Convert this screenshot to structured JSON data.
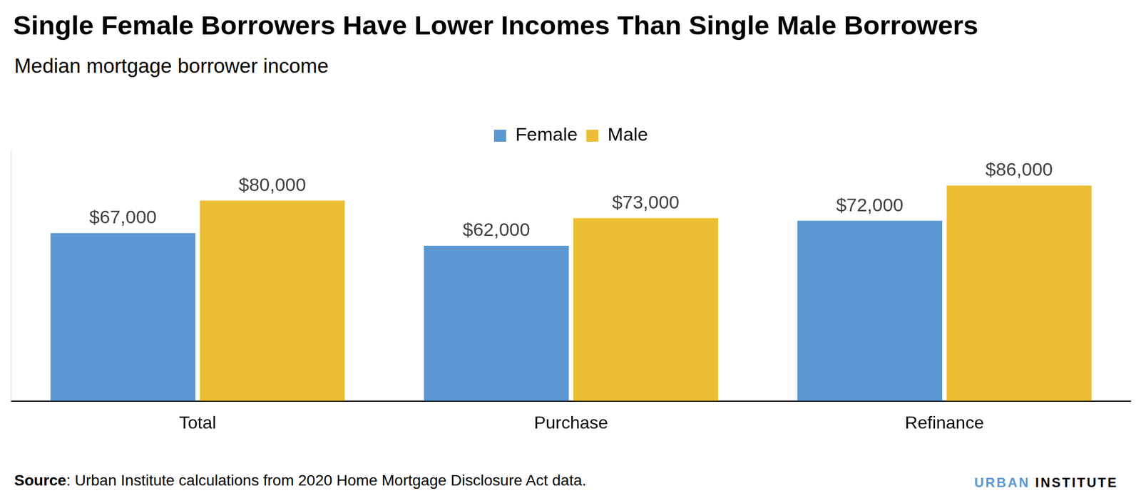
{
  "chart_data": {
    "type": "bar",
    "title": "Single Female Borrowers Have Lower Incomes Than Single Male Borrowers",
    "subtitle": "Median mortgage borrower income",
    "source": "Source: Urban Institute calculations from 2020 Home Mortgage Disclosure Act data.",
    "logo": "URBAN INSTITUTE",
    "categories": [
      "Total",
      "Purchase",
      "Refinance"
    ],
    "series": [
      {
        "name": "Female",
        "color": "#5b97d1",
        "values": [
          67000,
          62000,
          72000
        ],
        "value_labels": [
          "$67,000",
          "$62,000",
          "$72,000"
        ]
      },
      {
        "name": "Male",
        "color": "#ecbe34",
        "values": [
          80000,
          73000,
          86000
        ],
        "value_labels": [
          "$80,000",
          "$73,000",
          "$86,000"
        ]
      }
    ],
    "ylim": [
      0,
      100000
    ],
    "grid": false,
    "legend": "top",
    "data_labels": true,
    "tick_labels": "x"
  }
}
